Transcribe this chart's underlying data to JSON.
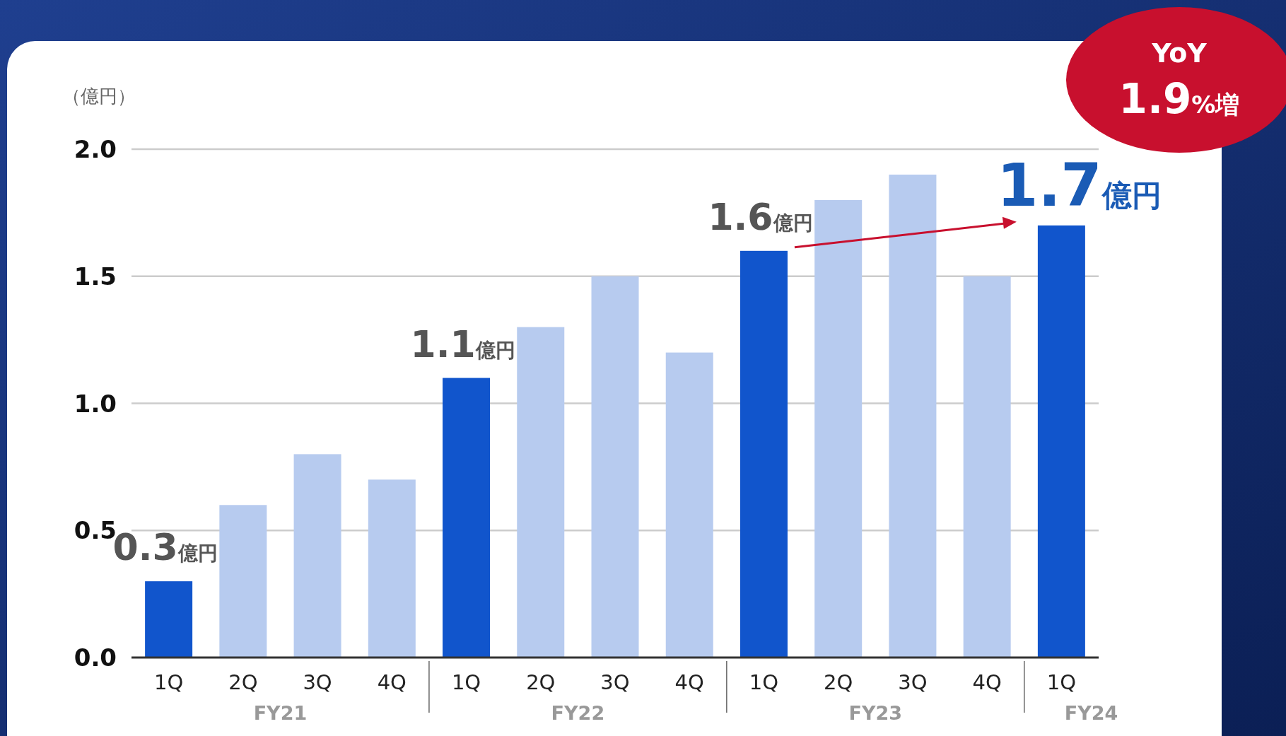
{
  "chart_data": {
    "type": "bar",
    "ylabel": "（億円）",
    "categories": [
      "1Q",
      "2Q",
      "3Q",
      "4Q",
      "1Q",
      "2Q",
      "3Q",
      "4Q",
      "1Q",
      "2Q",
      "3Q",
      "4Q",
      "1Q"
    ],
    "values": [
      0.3,
      0.6,
      0.8,
      0.7,
      1.1,
      1.3,
      1.5,
      1.2,
      1.6,
      1.8,
      1.9,
      1.5,
      1.7
    ],
    "colors": [
      "#1155cc",
      "#b7cbef",
      "#b7cbef",
      "#b7cbef",
      "#1155cc",
      "#b7cbef",
      "#b7cbef",
      "#b7cbef",
      "#1155cc",
      "#b7cbef",
      "#b7cbef",
      "#b7cbef",
      "#1155cc"
    ],
    "value_labels": [
      "0.3億円",
      null,
      null,
      null,
      "1.1億円",
      null,
      null,
      null,
      "1.6億円",
      null,
      null,
      null,
      "1.7億円"
    ],
    "ylim": [
      0,
      2
    ],
    "yticks": [
      {
        "value": 0,
        "label": "0.0"
      },
      {
        "value": 0.5,
        "label": "0.5"
      },
      {
        "value": 1,
        "label": "1.0"
      },
      {
        "value": 1.5,
        "label": "1.5"
      },
      {
        "value": 2,
        "label": "2.0"
      }
    ],
    "grid": "y",
    "annotations": [
      "FY21",
      "FY22",
      "FY23",
      "FY24",
      "YoY",
      "1.9%増"
    ]
  }
}
